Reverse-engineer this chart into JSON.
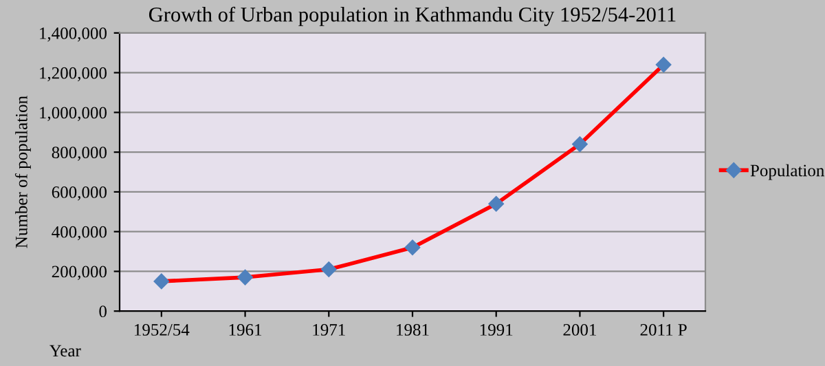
{
  "chart_data": {
    "type": "line",
    "title": "Growth of Urban population in Kathmandu City 1952/54-2011",
    "xlabel": "Year",
    "ylabel": "Number of population",
    "categories": [
      "1952/54",
      "1961",
      "1971",
      "1981",
      "1991",
      "2001",
      "2011 P"
    ],
    "series": [
      {
        "name": "Population",
        "color": "#ff0000",
        "values": [
          150000,
          170000,
          210000,
          320000,
          540000,
          840000,
          1240000
        ]
      }
    ],
    "ylim": [
      0,
      1400000
    ],
    "yticks": [
      {
        "value": 0,
        "label": "0"
      },
      {
        "value": 200000,
        "label": "200,000"
      },
      {
        "value": 400000,
        "label": "400,000"
      },
      {
        "value": 600000,
        "label": "600,000"
      },
      {
        "value": 800000,
        "label": "800,000"
      },
      {
        "value": 1000000,
        "label": "1,000,000"
      },
      {
        "value": 1200000,
        "label": "1,200,000"
      },
      {
        "value": 1400000,
        "label": "1,400,000"
      }
    ],
    "grid": "y",
    "legend": "right",
    "marker": "diamond",
    "line_style": "solid"
  }
}
